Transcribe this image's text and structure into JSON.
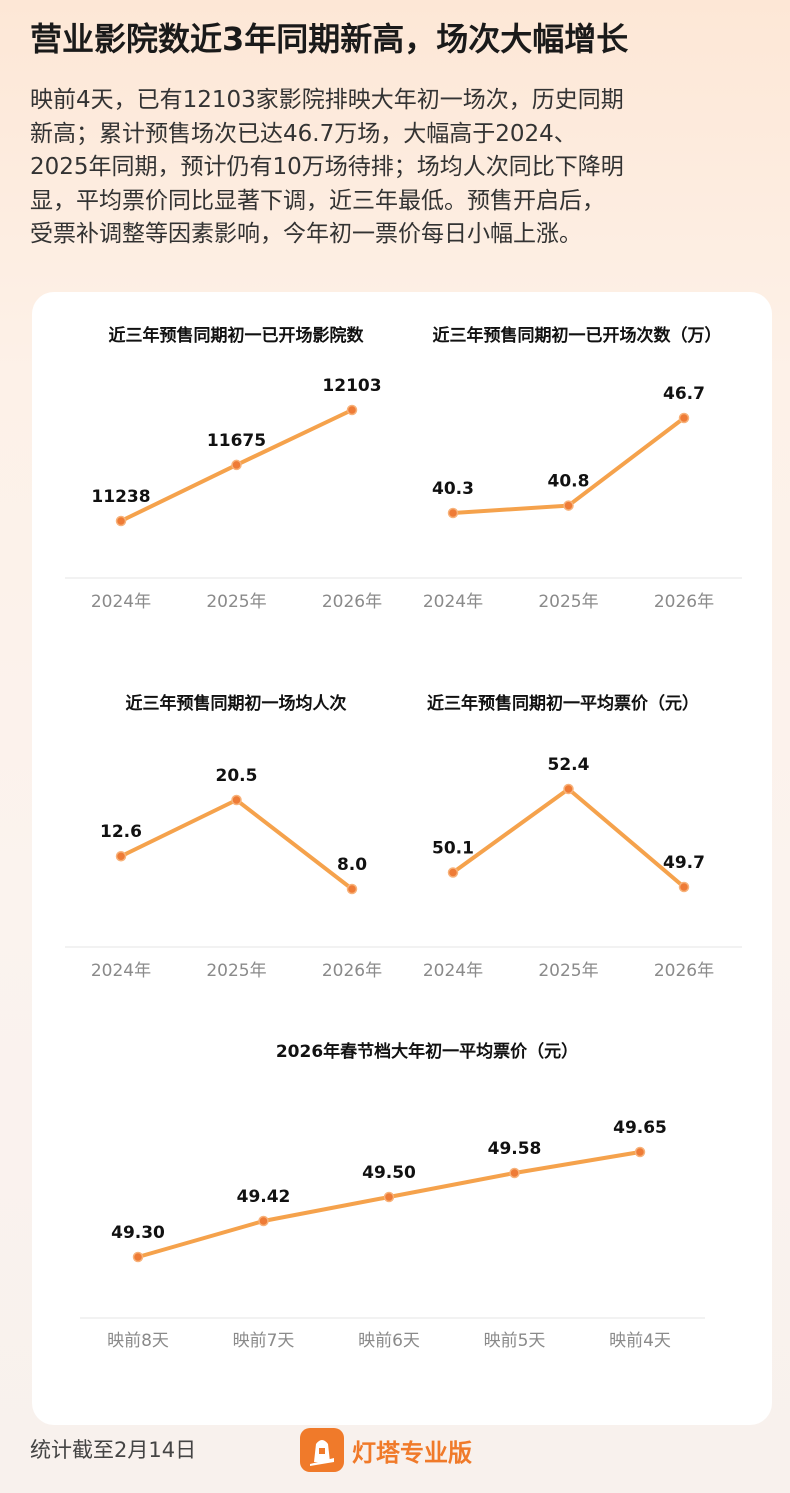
{
  "title": "营业影院数近3年同期新高，场次大幅增长",
  "intro": [
    "映前4天，已有12103家影院排映大年初一场次，历史同期",
    "新高；累计预售场次已达46.7万场，大幅高于2024、",
    "2025年同期，预计仍有10万场待排；场均人次同比下降明",
    "显，平均票价同比显著下调，近三年最低。预售开启后，",
    "受票补调整等因素影响，今年初一票价每日小幅上涨。"
  ],
  "chart_data": [
    {
      "type": "line",
      "title": "近三年预售同期初一已开场影院数",
      "categories": [
        "2024年",
        "2025年",
        "2026年"
      ],
      "values": [
        11238,
        11675,
        12103
      ],
      "color": "#f5a24c"
    },
    {
      "type": "line",
      "title": "近三年预售同期初一已开场次数（万）",
      "categories": [
        "2024年",
        "2025年",
        "2026年"
      ],
      "values": [
        40.3,
        40.8,
        46.7
      ],
      "color": "#f5a24c"
    },
    {
      "type": "line",
      "title": "近三年预售同期初一场均人次",
      "categories": [
        "2024年",
        "2025年",
        "2026年"
      ],
      "values": [
        12.6,
        20.5,
        8.0
      ],
      "value_labels": [
        "12.6",
        "20.5",
        "8.0"
      ],
      "color": "#f5a24c"
    },
    {
      "type": "line",
      "title": "近三年预售同期初一平均票价（元）",
      "categories": [
        "2024年",
        "2025年",
        "2026年"
      ],
      "values": [
        50.1,
        52.4,
        49.7
      ],
      "color": "#f5a24c"
    },
    {
      "type": "line",
      "title": "2026年春节档大年初一平均票价（元）",
      "categories": [
        "映前8天",
        "映前7天",
        "映前6天",
        "映前5天",
        "映前4天"
      ],
      "values": [
        49.3,
        49.42,
        49.5,
        49.58,
        49.65
      ],
      "value_labels": [
        "49.30",
        "49.42",
        "49.50",
        "49.58",
        "49.65"
      ],
      "color": "#f5a24c"
    }
  ],
  "footer": "统计截至2月14日",
  "brand": "灯塔专业版"
}
